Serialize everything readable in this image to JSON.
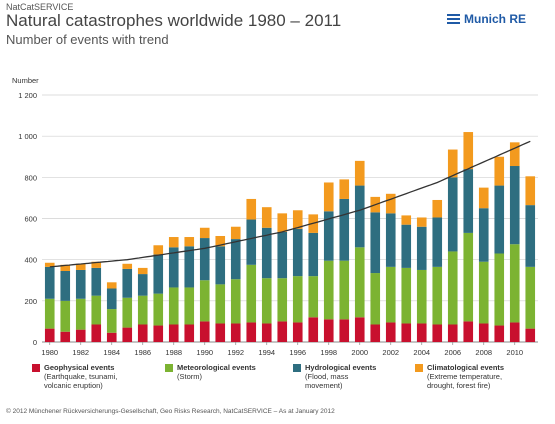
{
  "header": {
    "source_tag": "NatCatSERVICE",
    "title": "Natural catastrophes worldwide 1980 – 2011",
    "subtitle": "Number of events with trend",
    "brand": "Munich RE"
  },
  "chart_data": {
    "type": "bar",
    "stacked": true,
    "title": "Natural catastrophes worldwide 1980 – 2011",
    "subtitle": "Number of events with trend",
    "ylabel": "Number",
    "xlabel": "",
    "ylim": [
      0,
      1200
    ],
    "yticks": [
      0,
      200,
      400,
      600,
      800,
      1000,
      1200
    ],
    "ytick_labels": [
      "0",
      "200",
      "400",
      "600",
      "800",
      "1 000",
      "1 200"
    ],
    "xtick_labels": [
      "1980",
      "1982",
      "1984",
      "1986",
      "1988",
      "1990",
      "1992",
      "1994",
      "1996",
      "1998",
      "2000",
      "2002",
      "2004",
      "2006",
      "2008",
      "2010"
    ],
    "grid": true,
    "categories": [
      1980,
      1981,
      1982,
      1983,
      1984,
      1985,
      1986,
      1987,
      1988,
      1989,
      1990,
      1991,
      1992,
      1993,
      1994,
      1995,
      1996,
      1997,
      1998,
      1999,
      2000,
      2001,
      2002,
      2003,
      2004,
      2005,
      2006,
      2007,
      2008,
      2009,
      2010,
      2011
    ],
    "series": [
      {
        "name": "Geophysical events",
        "color": "#c8102e",
        "values": [
          65,
          50,
          60,
          85,
          45,
          70,
          85,
          80,
          85,
          85,
          100,
          90,
          90,
          95,
          90,
          100,
          95,
          120,
          110,
          110,
          120,
          85,
          95,
          90,
          90,
          85,
          85,
          100,
          90,
          80,
          95,
          65
        ]
      },
      {
        "name": "Meteorological events",
        "color": "#7cb332",
        "values": [
          145,
          150,
          150,
          140,
          115,
          145,
          140,
          155,
          180,
          180,
          200,
          190,
          215,
          280,
          220,
          210,
          225,
          200,
          285,
          285,
          340,
          250,
          270,
          270,
          260,
          280,
          355,
          430,
          300,
          350,
          380,
          300
        ]
      },
      {
        "name": "Hydrological events",
        "color": "#2e6e80",
        "values": [
          155,
          145,
          140,
          135,
          100,
          140,
          105,
          190,
          195,
          200,
          205,
          185,
          195,
          220,
          245,
          225,
          230,
          210,
          240,
          300,
          300,
          295,
          260,
          210,
          210,
          240,
          360,
          310,
          260,
          330,
          380,
          300
        ]
      },
      {
        "name": "Climatological events",
        "color": "#f39a1e",
        "values": [
          20,
          30,
          30,
          30,
          30,
          25,
          30,
          45,
          50,
          45,
          50,
          50,
          60,
          100,
          100,
          90,
          90,
          90,
          140,
          95,
          120,
          75,
          95,
          45,
          45,
          85,
          135,
          180,
          100,
          140,
          115,
          140
        ]
      }
    ],
    "trend": {
      "label": "trend",
      "x": [
        1980,
        1985,
        1990,
        1995,
        2000,
        2005,
        2011
      ],
      "y": [
        365,
        400,
        455,
        535,
        640,
        775,
        975
      ]
    }
  },
  "legend": [
    {
      "name": "Geophysical events",
      "desc1": "(Earthquake, tsunami,",
      "desc2": "volcanic eruption)",
      "color": "#c8102e"
    },
    {
      "name": "Meteorological events",
      "desc1": "(Storm)",
      "desc2": "",
      "color": "#7cb332"
    },
    {
      "name": "Hydrological events",
      "desc1": "(Flood, mass",
      "desc2": "movement)",
      "color": "#2e6e80"
    },
    {
      "name": "Climatological events",
      "desc1": "(Extreme temperature,",
      "desc2": "drought, forest fire)",
      "color": "#f39a1e"
    }
  ],
  "footer": "© 2012 Münchener Rückversicherungs-Gesellschaft, Geo Risks Research, NatCatSERVICE – As at January 2012"
}
